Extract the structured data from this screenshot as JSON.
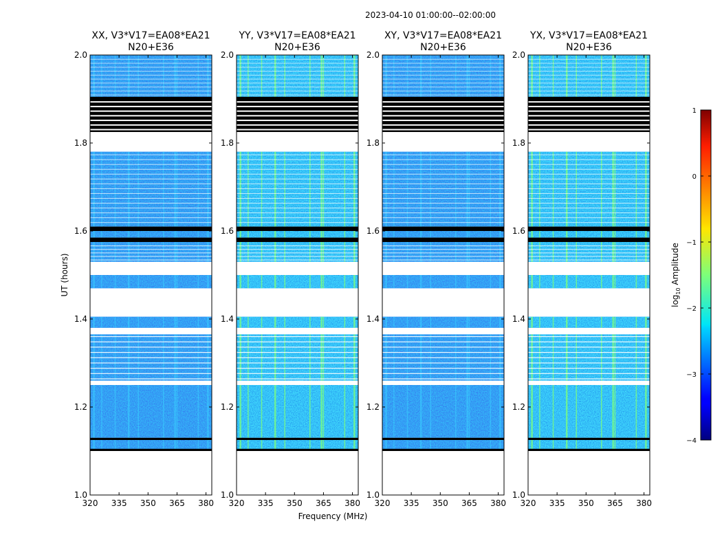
{
  "suptitle": "2023-04-10  01:00:00--02:00:00",
  "chart_data": {
    "type": "heatmap",
    "xlabel": "Frequency (MHz)",
    "ylabel": "UT (hours)",
    "xlim": [
      320,
      383
    ],
    "ylim": [
      1.0,
      2.0
    ],
    "xticks": [
      "320",
      "335",
      "350",
      "365",
      "380"
    ],
    "xtick_values": [
      320,
      335,
      350,
      365,
      380
    ],
    "yticks": [
      "1.0",
      "1.2",
      "1.4",
      "1.6",
      "1.8",
      "2.0"
    ],
    "ytick_values": [
      1.0,
      1.2,
      1.4,
      1.6,
      1.8,
      2.0
    ],
    "panels": [
      {
        "title_line1": "XX, V3*V17=EA08*EA21",
        "title_line2": "N20+E36",
        "pol": "XX",
        "level": 0
      },
      {
        "title_line1": "YY, V3*V17=EA08*EA21",
        "title_line2": "N20+E36",
        "pol": "YY",
        "level": 1
      },
      {
        "title_line1": "XY, V3*V17=EA08*EA21",
        "title_line2": "N20+E36",
        "pol": "XY",
        "level": 0
      },
      {
        "title_line1": "YX, V3*V17=EA08*EA21",
        "title_line2": "N20+E36",
        "pol": "YX",
        "level": 1
      }
    ],
    "data_segments_ut": [
      [
        1.1,
        1.125
      ],
      [
        1.13,
        1.25
      ],
      [
        1.26,
        1.365
      ],
      [
        1.38,
        1.405
      ],
      [
        1.47,
        1.5
      ],
      [
        1.53,
        1.575
      ],
      [
        1.585,
        1.6
      ],
      [
        1.61,
        1.78
      ],
      [
        1.905,
        2.0
      ]
    ],
    "flagged_black_ut": [
      [
        1.1,
        1.105
      ],
      [
        1.125,
        1.13
      ],
      [
        1.575,
        1.585
      ],
      [
        1.6,
        1.61
      ],
      [
        1.825,
        1.905
      ]
    ],
    "blank_ut": [
      [
        1.0,
        1.1
      ],
      [
        1.405,
        1.47
      ],
      [
        1.5,
        1.53
      ],
      [
        1.78,
        1.825
      ]
    ],
    "bright_channels_mhz": [
      322,
      326,
      333,
      340,
      345,
      358,
      364,
      365,
      376,
      381
    ],
    "colorbar": {
      "label": "log",
      "label_sub": "10",
      "label_rest": " Amplitude",
      "ticks": [
        "1",
        "0",
        "−1",
        "−2",
        "−3",
        "−4"
      ],
      "tick_values": [
        1,
        0,
        -1,
        -2,
        -3,
        -4
      ],
      "range": [
        -4,
        1
      ],
      "colormap": "jet"
    }
  }
}
